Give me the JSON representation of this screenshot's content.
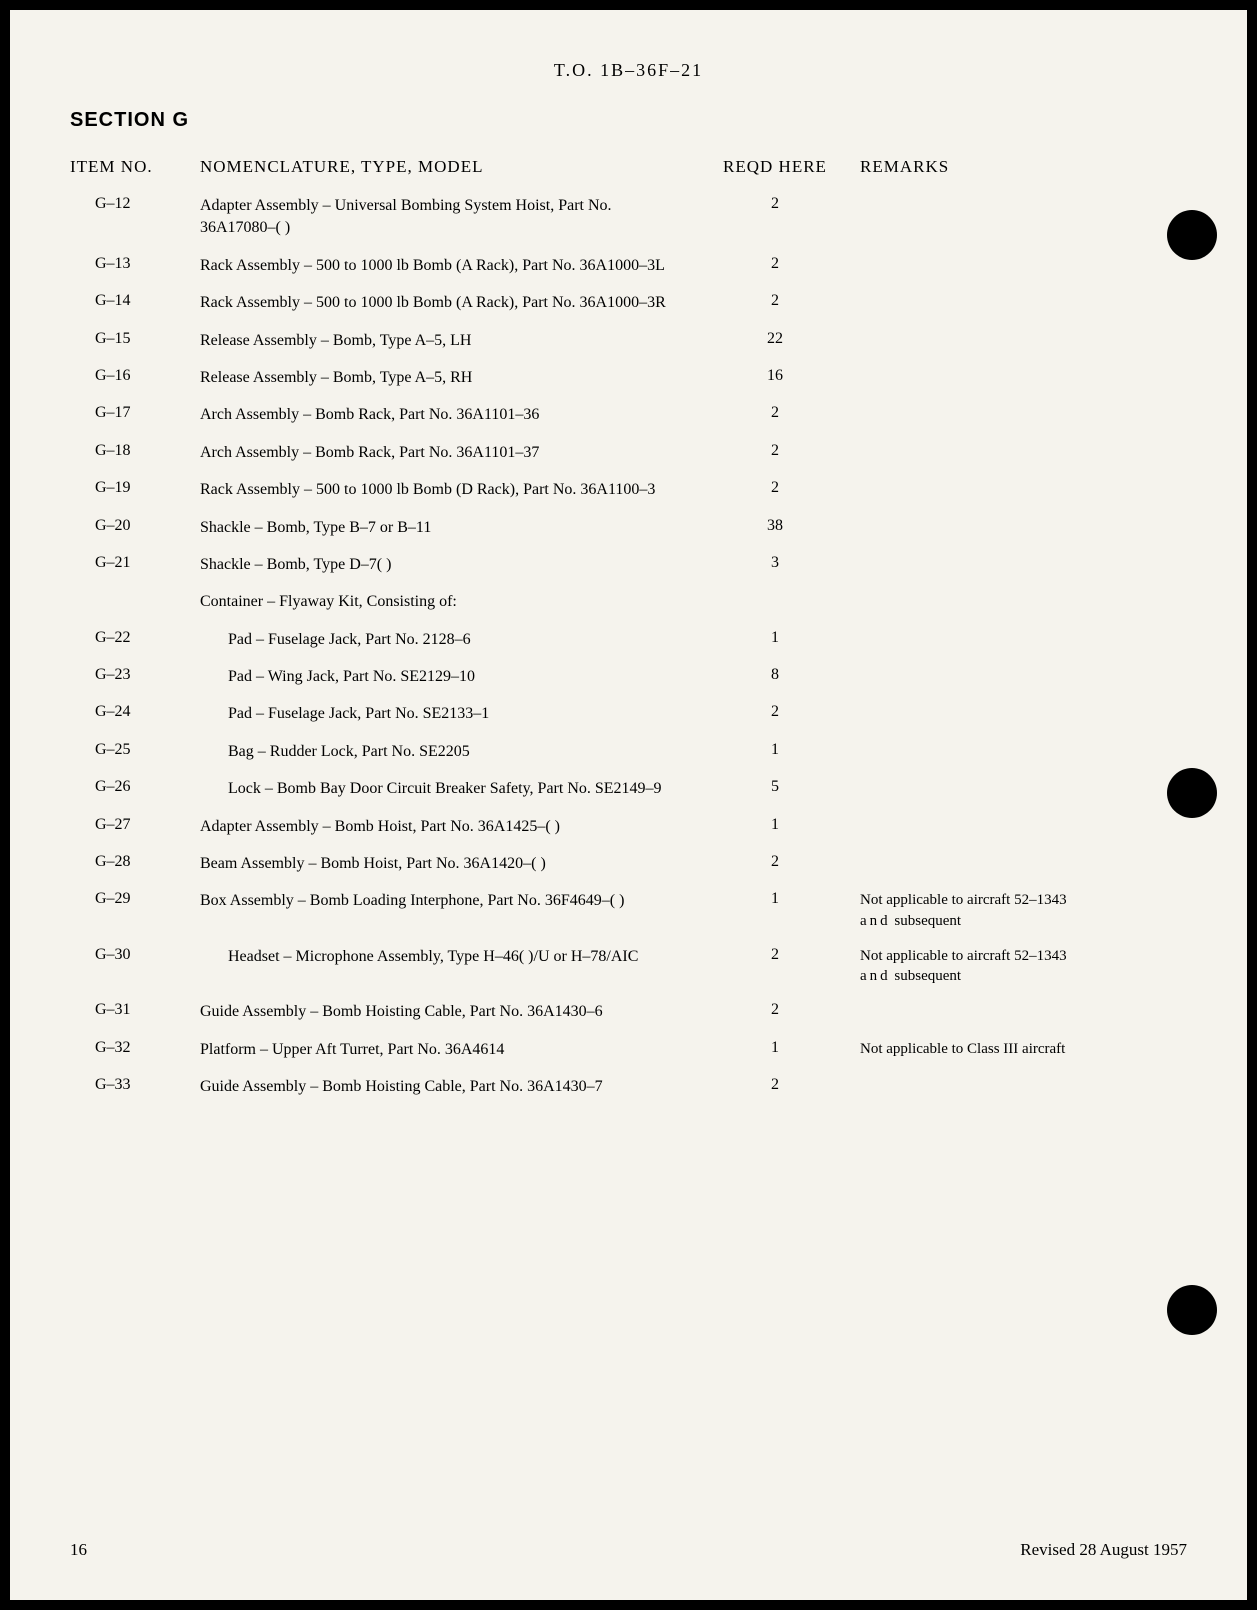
{
  "header": {
    "doc_number": "T.O. 1B–36F–21"
  },
  "section": {
    "title": "SECTION G"
  },
  "columns": {
    "item_no": "ITEM NO.",
    "nomenclature": "NOMENCLATURE, TYPE, MODEL",
    "reqd": "REQD HERE",
    "remarks": "REMARKS"
  },
  "rows": [
    {
      "item": "G–12",
      "nom": "Adapter Assembly – Universal Bombing System Hoist, Part No. 36A17080–( )",
      "reqd": "2",
      "remarks": "",
      "indent": false
    },
    {
      "item": "G–13",
      "nom": "Rack Assembly – 500 to 1000 lb Bomb (A Rack), Part No. 36A1000–3L",
      "reqd": "2",
      "remarks": "",
      "indent": false
    },
    {
      "item": "G–14",
      "nom": "Rack Assembly – 500 to 1000 lb Bomb (A Rack), Part No. 36A1000–3R",
      "reqd": "2",
      "remarks": "",
      "indent": false
    },
    {
      "item": "G–15",
      "nom": "Release Assembly – Bomb, Type A–5, LH",
      "reqd": "22",
      "remarks": "",
      "indent": false
    },
    {
      "item": "G–16",
      "nom": "Release Assembly – Bomb, Type A–5, RH",
      "reqd": "16",
      "remarks": "",
      "indent": false
    },
    {
      "item": "G–17",
      "nom": "Arch Assembly – Bomb Rack, Part No. 36A1101–36",
      "reqd": "2",
      "remarks": "",
      "indent": false
    },
    {
      "item": "G–18",
      "nom": "Arch Assembly – Bomb Rack, Part No. 36A1101–37",
      "reqd": "2",
      "remarks": "",
      "indent": false
    },
    {
      "item": "G–19",
      "nom": "Rack Assembly – 500 to 1000 lb Bomb (D Rack), Part No. 36A1100–3",
      "reqd": "2",
      "remarks": "",
      "indent": false
    },
    {
      "item": "G–20",
      "nom": "Shackle – Bomb, Type B–7 or B–11",
      "reqd": "38",
      "remarks": "",
      "indent": false
    },
    {
      "item": "G–21",
      "nom": "Shackle – Bomb, Type D–7( )",
      "reqd": "3",
      "remarks": "",
      "indent": false
    },
    {
      "item": "",
      "nom": "Container – Flyaway Kit, Consisting of:",
      "reqd": "",
      "remarks": "",
      "indent": false
    },
    {
      "item": "G–22",
      "nom": "Pad – Fuselage Jack, Part No. 2128–6",
      "reqd": "1",
      "remarks": "",
      "indent": true
    },
    {
      "item": "G–23",
      "nom": "Pad – Wing Jack, Part No. SE2129–10",
      "reqd": "8",
      "remarks": "",
      "indent": true
    },
    {
      "item": "G–24",
      "nom": "Pad – Fuselage Jack, Part No. SE2133–1",
      "reqd": "2",
      "remarks": "",
      "indent": true
    },
    {
      "item": "G–25",
      "nom": "Bag – Rudder Lock, Part No. SE2205",
      "reqd": "1",
      "remarks": "",
      "indent": true
    },
    {
      "item": "G–26",
      "nom": "Lock – Bomb Bay Door Circuit Breaker Safety, Part No. SE2149–9",
      "reqd": "5",
      "remarks": "",
      "indent": true
    },
    {
      "item": "G–27",
      "nom": "Adapter Assembly – Bomb Hoist, Part No. 36A1425–( )",
      "reqd": "1",
      "remarks": "",
      "indent": false
    },
    {
      "item": "G–28",
      "nom": "Beam Assembly – Bomb Hoist, Part No. 36A1420–( )",
      "reqd": "2",
      "remarks": "",
      "indent": false
    },
    {
      "item": "G–29",
      "nom": "Box Assembly – Bomb Loading Interphone, Part No. 36F4649–( )",
      "reqd": "1",
      "remarks": "Not applicable to aircraft 52–1343 and subsequent",
      "indent": false
    },
    {
      "item": "G–30",
      "nom": "Headset – Microphone Assembly, Type H–46( )/U or H–78/AIC",
      "reqd": "2",
      "remarks": "Not applicable to aircraft 52–1343 and subsequent",
      "indent": true
    },
    {
      "item": "G–31",
      "nom": "Guide Assembly – Bomb Hoisting Cable, Part No. 36A1430–6",
      "reqd": "2",
      "remarks": "",
      "indent": false
    },
    {
      "item": "G–32",
      "nom": "Platform – Upper Aft Turret, Part No. 36A4614",
      "reqd": "1",
      "remarks": "Not applicable to Class III aircraft",
      "indent": false
    },
    {
      "item": "G–33",
      "nom": "Guide Assembly – Bomb Hoisting Cable, Part No. 36A1430–7",
      "reqd": "2",
      "remarks": "",
      "indent": false
    }
  ],
  "footer": {
    "page_number": "16",
    "revision": "Revised 28 August 1957"
  }
}
